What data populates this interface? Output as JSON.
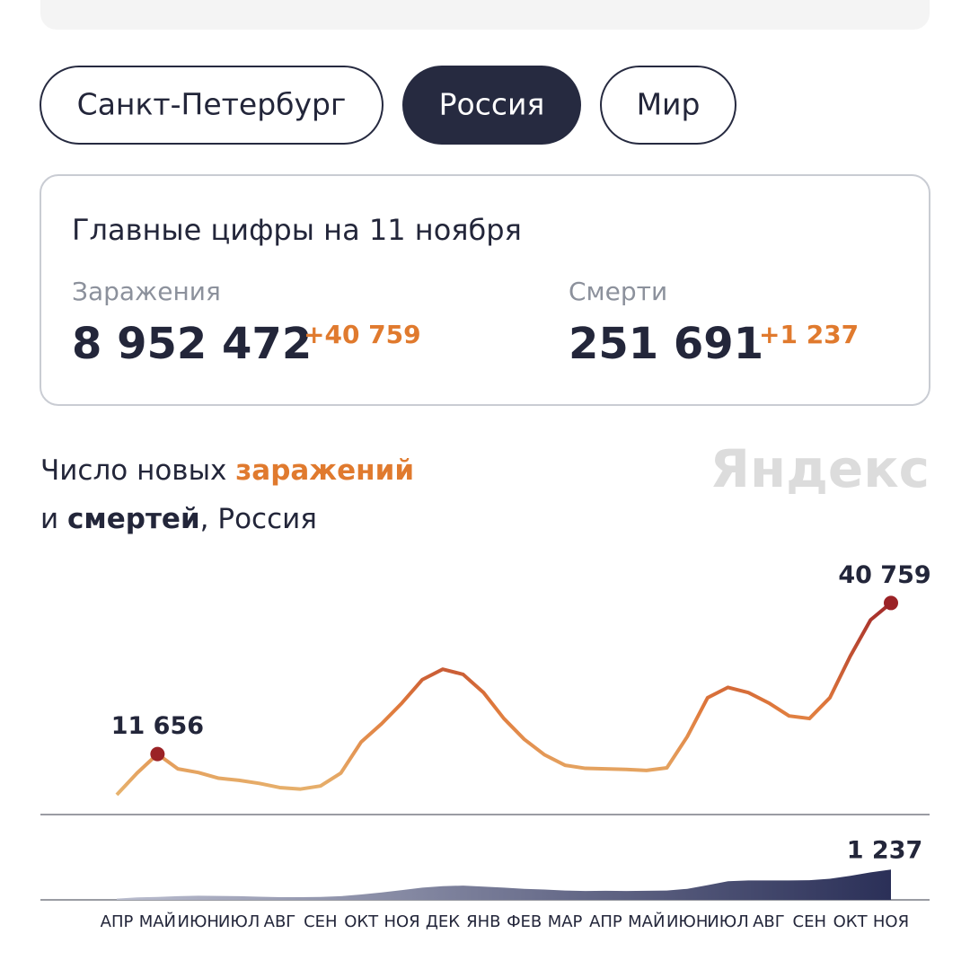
{
  "top_tabs": [
    {
      "label": "Санкт-Петербург",
      "active": false
    },
    {
      "label": "Россия",
      "active": true
    },
    {
      "label": "Мир",
      "active": false
    }
  ],
  "summary": {
    "title": "Главные цифры на 11 ноября",
    "infections": {
      "label": "Заражения",
      "total": "8 952 472",
      "delta": "+40 759"
    },
    "deaths": {
      "label": "Смерти",
      "total": "251 691",
      "delta": "+1 237"
    }
  },
  "chart_data": {
    "type": "line",
    "title_parts": [
      "Число новых ",
      "заражений",
      "и ",
      "смертей",
      ", Россия"
    ],
    "watermark": "Яндекс",
    "categories": [
      "АПР",
      null,
      "МАЙ",
      null,
      "ИЮН",
      null,
      "ИЮЛ",
      null,
      "АВГ",
      null,
      "СЕН",
      null,
      "ОКТ",
      null,
      "НОЯ",
      null,
      "ДЕК",
      null,
      "ЯНВ",
      null,
      "ФЕВ",
      null,
      "МАР",
      null,
      "АПР",
      null,
      "МАЙ",
      null,
      "ИЮН",
      null,
      "ИЮЛ",
      null,
      "АВГ",
      null,
      "СЕН",
      null,
      "ОКТ",
      null,
      "НОЯ"
    ],
    "ylim": [
      0,
      50000
    ],
    "y2lim": [
      0,
      1500
    ],
    "series": [
      {
        "colors": [
          "#e8c07a",
          "#e07a3c",
          "#a32a2a"
        ],
        "values": [
          3800,
          8000,
          11656,
          8800,
          8100,
          7000,
          6600,
          6000,
          5200,
          4900,
          5500,
          8000,
          14000,
          17500,
          21500,
          26000,
          28000,
          27000,
          23500,
          18500,
          14500,
          11500,
          9500,
          8900,
          8800,
          8700,
          8500,
          9000,
          15000,
          22500,
          24500,
          23500,
          21500,
          19000,
          18500,
          22500,
          30500,
          37500,
          40759
        ],
        "value_labels": [
          null,
          null,
          "11 656",
          null,
          null,
          null,
          null,
          null,
          null,
          null,
          null,
          null,
          null,
          null,
          null,
          null,
          null,
          null,
          null,
          null,
          null,
          null,
          null,
          null,
          null,
          null,
          null,
          null,
          null,
          null,
          null,
          null,
          null,
          null,
          null,
          null,
          null,
          null,
          "40 759"
        ]
      },
      {
        "axis": "y2",
        "colors": [
          "#c3c6d6",
          "#2b3058"
        ],
        "values": [
          50,
          100,
          120,
          150,
          170,
          160,
          150,
          130,
          110,
          110,
          120,
          150,
          220,
          300,
          400,
          500,
          560,
          580,
          540,
          500,
          450,
          420,
          380,
          360,
          370,
          360,
          370,
          380,
          450,
          600,
          760,
          790,
          790,
          790,
          800,
          860,
          980,
          1120,
          1237
        ],
        "value_labels": [
          null,
          null,
          null,
          null,
          null,
          null,
          null,
          null,
          null,
          null,
          null,
          null,
          null,
          null,
          null,
          null,
          null,
          null,
          null,
          null,
          null,
          null,
          null,
          null,
          null,
          null,
          null,
          null,
          null,
          null,
          null,
          null,
          null,
          null,
          null,
          null,
          null,
          null,
          "1 237"
        ]
      }
    ]
  }
}
